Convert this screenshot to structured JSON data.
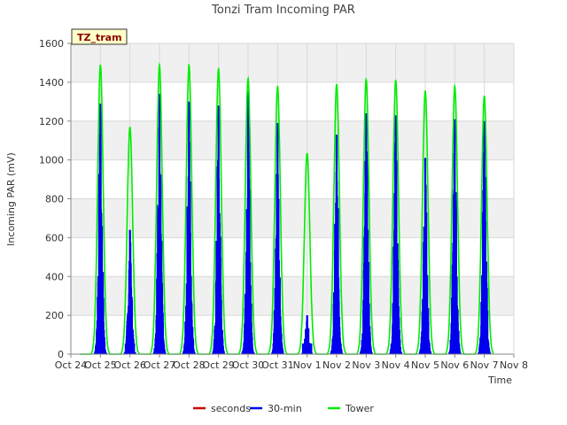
{
  "chart_data": {
    "type": "line",
    "title": "Tonzi Tram Incoming PAR",
    "xlabel": "Time",
    "ylabel": "Incoming PAR (mV)",
    "tag": "TZ_tram",
    "ylim": [
      0,
      1600
    ],
    "yticks": [
      "0",
      "200",
      "400",
      "600",
      "800",
      "1000",
      "1200",
      "1400",
      "1600"
    ],
    "xlim": [
      0,
      15
    ],
    "xticks": [
      "Oct 24",
      "Oct 25",
      "Oct 26",
      "Oct 27",
      "Oct 28",
      "Oct 29",
      "Oct 30",
      "Oct 31",
      "Nov 1",
      "Nov 2",
      "Nov 3",
      "Nov 4",
      "Nov 5",
      "Nov 6",
      "Nov 7",
      "Nov 8"
    ],
    "grid": true,
    "legend_position": "bottom",
    "series": [
      {
        "name": "seconds",
        "color": "#cc0000",
        "peaks": []
      },
      {
        "name": "30-min",
        "color": "#0000ee",
        "peaks": [
          1290,
          640,
          1340,
          1300,
          1280,
          1350,
          1190,
          200,
          1130,
          1240,
          1230,
          1010,
          1210,
          1200
        ]
      },
      {
        "name": "Tower",
        "color": "#00ee00",
        "peaks": [
          1490,
          1170,
          1490,
          1490,
          1470,
          1420,
          1380,
          1035,
          1390,
          1415,
          1410,
          1355,
          1380,
          1330
        ]
      }
    ]
  }
}
